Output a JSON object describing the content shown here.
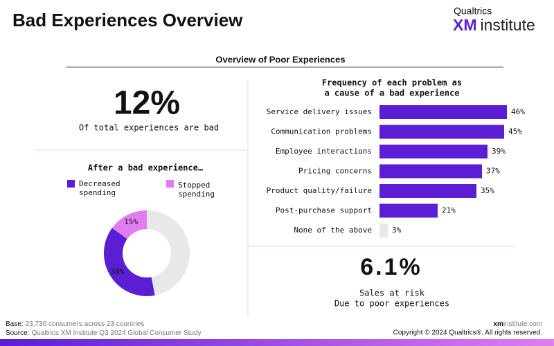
{
  "header": {
    "title": "Bad Experiences Overview",
    "logo_top": "Qualtrics",
    "logo_xm": "XM",
    "logo_rest": "institute"
  },
  "section_title": "Overview of Poor Experiences",
  "stat_bad": {
    "value": "12%",
    "caption": "Of total experiences are bad"
  },
  "chart_data": [
    {
      "type": "donut",
      "title": "After a bad experience…",
      "series": [
        {
          "name": "Decreased spending",
          "color": "#5b1ed4",
          "values": [
            38
          ],
          "value_labels": [
            "38%"
          ]
        },
        {
          "name": "Stopped spending",
          "color": "#e07ef0",
          "values": [
            15
          ],
          "value_labels": [
            "15%"
          ]
        }
      ],
      "rest_color": "#e8e8e8"
    },
    {
      "type": "hbar",
      "title": [
        "Frequency of each problem as",
        "a cause of a bad experience"
      ],
      "categories": [
        "Service delivery issues",
        "Communication problems",
        "Employee interactions",
        "Pricing concerns",
        "Product quality/failure",
        "Post-purchase support",
        "None of the above"
      ],
      "values": [
        46,
        45,
        39,
        37,
        35,
        21,
        3
      ],
      "value_labels": [
        "46%",
        "45%",
        "39%",
        "37%",
        "35%",
        "21%",
        "3%"
      ],
      "color": "#5b1ed4",
      "other_color": "#e8e8e8"
    }
  ],
  "stat_risk": {
    "value": "6.1%",
    "caption": [
      "Sales at risk",
      "Due to poor experiences"
    ]
  },
  "footer": {
    "base_label": "Base:",
    "base": "23,730 consumers across 23 countries",
    "source_label": "Source:",
    "source": "Qualtrics XM Institute Q3 2024 Global Consumer Study",
    "site_bold": "xm",
    "site_rest": "institute.com",
    "copyright": "Copyright © 2024 Qualtrics®. All rights reserved."
  }
}
